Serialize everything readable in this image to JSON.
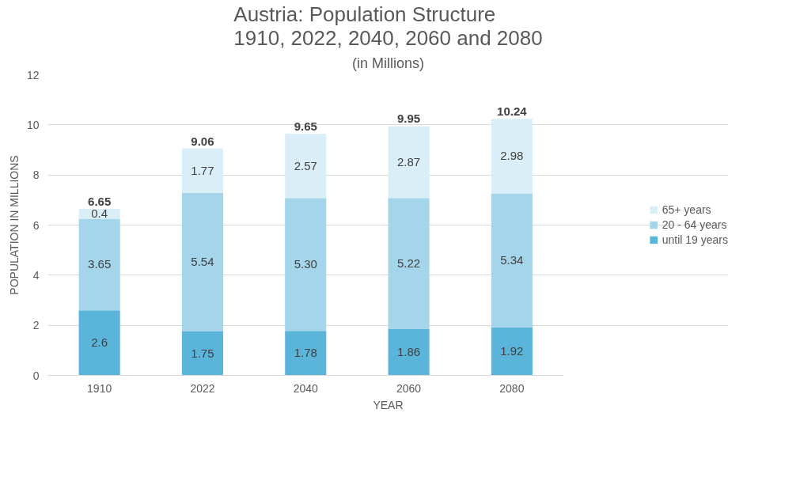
{
  "chart_data": {
    "type": "bar",
    "stacked": true,
    "title": "Austria: Population Structure\n1910, 2022, 2040, 2060 and 2080",
    "subtitle": "(in Millions)",
    "xlabel": "YEAR",
    "ylabel": "POPULATION IN MILLIONS",
    "categories": [
      "1910",
      "2022",
      "2040",
      "2060",
      "2080"
    ],
    "series": [
      {
        "name": "until 19 years",
        "color": "#5bb4d9",
        "values": [
          2.6,
          1.75,
          1.78,
          1.86,
          1.92
        ],
        "value_labels": [
          "2.6",
          "1.75",
          "1.78",
          "1.86",
          "1.92"
        ]
      },
      {
        "name": "20 - 64 years",
        "color": "#a5d5ea",
        "values": [
          3.65,
          5.54,
          5.3,
          5.22,
          5.34
        ],
        "value_labels": [
          "3.65",
          "5.54",
          "5.30",
          "5.22",
          "5.34"
        ]
      },
      {
        "name": "65+ years",
        "color": "#daeef7",
        "values": [
          0.4,
          1.77,
          2.57,
          2.87,
          2.98
        ],
        "value_labels": [
          "0.4",
          "1.77",
          "2.57",
          "2.87",
          "2.98"
        ]
      }
    ],
    "totals": [
      "6.65",
      "9.06",
      "9.65",
      "9.95",
      "10.24"
    ],
    "ylim": [
      0,
      12
    ],
    "yticks": [
      0,
      2,
      4,
      6,
      8,
      10,
      12
    ],
    "grid": "y",
    "legend": "right"
  }
}
